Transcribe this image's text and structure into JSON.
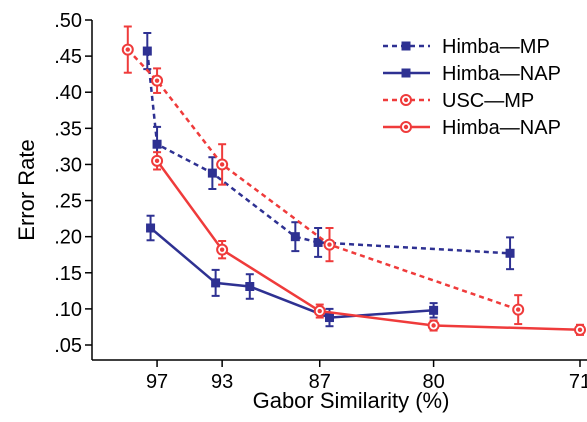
{
  "chart_data": {
    "type": "line",
    "xlabel": "Gabor Similarity (%)",
    "ylabel": "Error Rate",
    "xlim": [
      101,
      71
    ],
    "ylim": [
      0.05,
      0.5
    ],
    "x_ticks": [
      97,
      93,
      87,
      80,
      71
    ],
    "x_tick_labels": [
      "97",
      "93",
      "87",
      "80",
      "71"
    ],
    "y_ticks": [
      0.05,
      0.1,
      0.15,
      0.2,
      0.25,
      0.3,
      0.35,
      0.4,
      0.45,
      0.5
    ],
    "y_tick_labels": [
      ".05",
      ".10",
      ".15",
      ".20",
      ".25",
      ".30",
      ".35",
      ".40",
      ".45",
      ".50"
    ],
    "grid": false,
    "legend_position": "top-right",
    "series": [
      {
        "name": "Himba—MP",
        "color": "#2e3192",
        "line_style": "dashed",
        "marker": "square",
        "x": [
          97.6,
          97.0,
          93.6,
          88.5,
          87.1,
          75.3
        ],
        "y": [
          0.457,
          0.328,
          0.288,
          0.2,
          0.192,
          0.177
        ],
        "err": [
          0.025,
          0.024,
          0.022,
          0.02,
          0.02,
          0.022
        ]
      },
      {
        "name": "Himba—NAP",
        "color": "#2e3192",
        "line_style": "solid",
        "marker": "square",
        "x": [
          97.4,
          93.4,
          91.3,
          86.4,
          80.0
        ],
        "y": [
          0.212,
          0.136,
          0.131,
          0.088,
          0.098
        ],
        "err": [
          0.017,
          0.018,
          0.017,
          0.012,
          0.01
        ]
      },
      {
        "name": "USC—MP",
        "color": "#ef3b3b",
        "line_style": "dashed",
        "marker": "circle",
        "x": [
          98.8,
          97.0,
          93.0,
          86.4,
          74.8
        ],
        "y": [
          0.459,
          0.416,
          0.3,
          0.189,
          0.099
        ],
        "err": [
          0.032,
          0.017,
          0.028,
          0.023,
          0.02
        ]
      },
      {
        "name": "Himba—NAP",
        "color": "#ef3b3b",
        "line_style": "solid",
        "marker": "circle",
        "x": [
          97.0,
          93.0,
          87.0,
          80.0,
          71.0
        ],
        "y": [
          0.305,
          0.182,
          0.097,
          0.077,
          0.071
        ],
        "err": [
          0.012,
          0.012,
          0.009,
          0.007,
          0.007
        ]
      }
    ]
  }
}
